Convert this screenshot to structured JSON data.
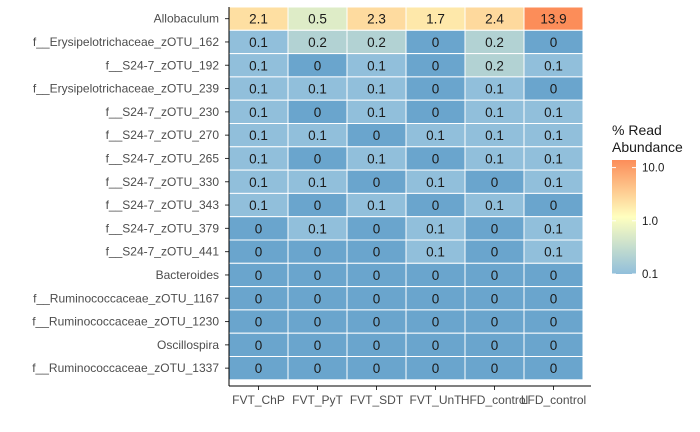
{
  "chart_data": {
    "type": "heatmap",
    "columns": [
      "FVT_ChP",
      "FVT_PyT",
      "FVT_SDT",
      "FVT_UnT",
      "HFD_control",
      "LFD_control"
    ],
    "rows": [
      "Allobaculum",
      "f__Erysipelotrichaceae_zOTU_162",
      "f__S24-7_zOTU_192",
      "f__Erysipelotrichaceae_zOTU_239",
      "f__S24-7_zOTU_230",
      "f__S24-7_zOTU_270",
      "f__S24-7_zOTU_265",
      "f__S24-7_zOTU_330",
      "f__S24-7_zOTU_343",
      "f__S24-7_zOTU_379",
      "f__S24-7_zOTU_441",
      "Bacteroides",
      "f__Ruminococcaceae_zOTU_1167",
      "f__Ruminococcaceae_zOTU_1230",
      "Oscillospira",
      "f__Ruminococcaceae_zOTU_1337"
    ],
    "values": [
      [
        2.1,
        0.5,
        2.3,
        1.7,
        2.4,
        13.9
      ],
      [
        0.1,
        0.2,
        0.2,
        0,
        0.2,
        0
      ],
      [
        0.1,
        0,
        0.1,
        0,
        0.2,
        0.1
      ],
      [
        0.1,
        0.1,
        0.1,
        0,
        0.1,
        0
      ],
      [
        0.1,
        0,
        0.1,
        0,
        0.1,
        0.1
      ],
      [
        0.1,
        0.1,
        0,
        0.1,
        0.1,
        0.1
      ],
      [
        0.1,
        0,
        0.1,
        0,
        0.1,
        0.1
      ],
      [
        0.1,
        0.1,
        0,
        0.1,
        0,
        0.1
      ],
      [
        0.1,
        0,
        0.1,
        0,
        0.1,
        0
      ],
      [
        0,
        0.1,
        0,
        0.1,
        0,
        0.1
      ],
      [
        0,
        0,
        0,
        0.1,
        0,
        0.1
      ],
      [
        0,
        0,
        0,
        0,
        0,
        0
      ],
      [
        0,
        0,
        0,
        0,
        0,
        0
      ],
      [
        0,
        0,
        0,
        0,
        0,
        0
      ],
      [
        0,
        0,
        0,
        0,
        0,
        0
      ],
      [
        0,
        0,
        0,
        0,
        0,
        0
      ]
    ],
    "color_scale": {
      "scale": "log10",
      "ticks": [
        {
          "value": 0.1,
          "label": "0.1"
        },
        {
          "value": 1,
          "label": "1.0"
        },
        {
          "value": 10,
          "label": "10.0"
        }
      ],
      "range": [
        0.1,
        13.9
      ],
      "low_color": "#91bfdb",
      "mid_color": "#ffffbf",
      "high_color": "#fc8d59",
      "below_range_color": "#6aa5cd"
    },
    "legend": {
      "title_lines": [
        "% Read",
        "Abundance"
      ],
      "position": "right"
    }
  }
}
